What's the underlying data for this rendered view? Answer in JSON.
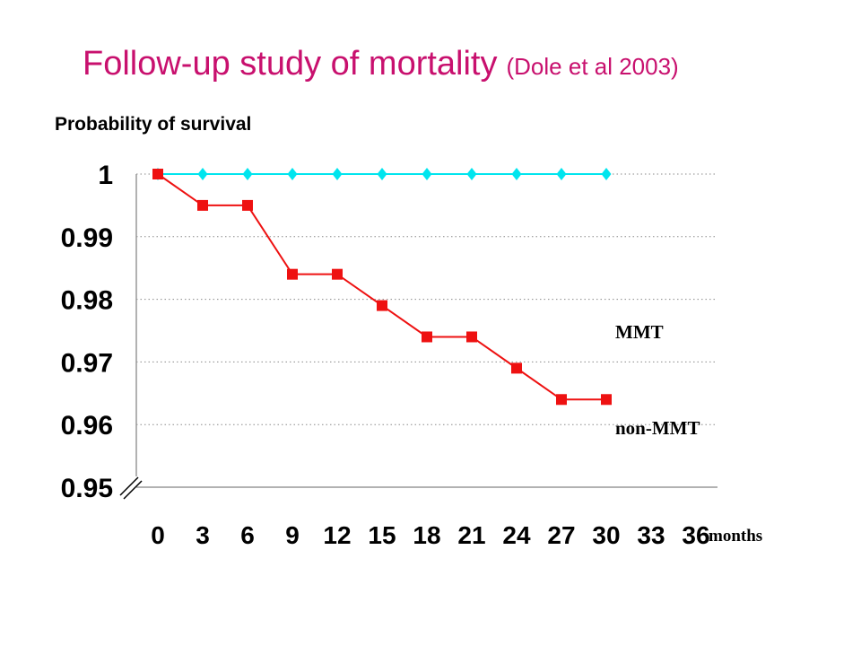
{
  "title": {
    "main": "Follow-up study of mortality",
    "citation": "(Dole et al 2003)"
  },
  "colors": {
    "title": "#c8106e",
    "mmt": "#00e5ee",
    "non_mmt": "#ee1111"
  },
  "chart_data": {
    "type": "line",
    "ylabel": "Probability of survival",
    "xlabel": "months",
    "x": [
      0,
      3,
      6,
      9,
      12,
      15,
      18,
      21,
      24,
      27,
      30
    ],
    "x_ticks": [
      "0",
      "3",
      "6",
      "9",
      "12",
      "15",
      "18",
      "21",
      "24",
      "27",
      "30",
      "33",
      "36"
    ],
    "y_ticks": [
      "1",
      "0.99",
      "0.98",
      "0.97",
      "0.96",
      "0.95"
    ],
    "xlim": [
      0,
      36
    ],
    "ylim": [
      0.95,
      1
    ],
    "grid": "horizontal dotted",
    "axis_break": true,
    "series": [
      {
        "name": "MMT",
        "marker": "diamond",
        "color": "#00e5ee",
        "values": [
          1,
          1,
          1,
          1,
          1,
          1,
          1,
          1,
          1,
          1,
          1
        ]
      },
      {
        "name": "non-MMT",
        "marker": "square",
        "color": "#ee1111",
        "values": [
          1,
          0.995,
          0.995,
          0.984,
          0.984,
          0.979,
          0.974,
          0.974,
          0.969,
          0.964,
          0.964
        ]
      }
    ]
  }
}
